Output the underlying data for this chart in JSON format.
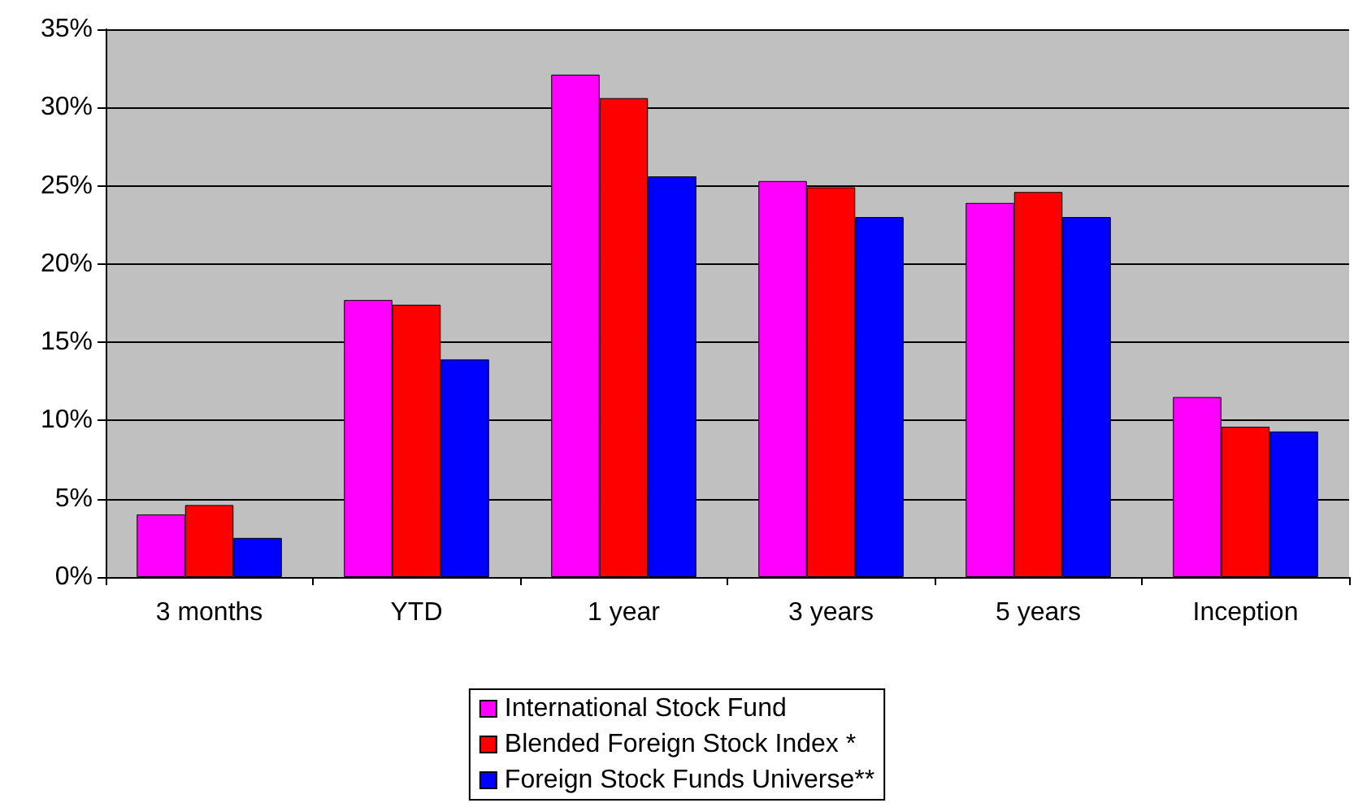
{
  "chart_data": {
    "type": "bar",
    "categories": [
      "3 months",
      "YTD",
      "1 year",
      "3 years",
      "5 years",
      "Inception"
    ],
    "series": [
      {
        "name": "International Stock Fund",
        "color": "#ff00ff",
        "values": [
          4.0,
          17.7,
          32.1,
          25.3,
          23.9,
          11.5
        ]
      },
      {
        "name": "Blended Foreign Stock Index *",
        "color": "#ff0000",
        "values": [
          4.6,
          17.4,
          30.6,
          24.9,
          24.6,
          9.6
        ]
      },
      {
        "name": "Foreign Stock Funds Universe**",
        "color": "#0000ff",
        "values": [
          2.5,
          13.9,
          25.6,
          23.0,
          23.0,
          9.3
        ]
      }
    ],
    "ylim": [
      0,
      35
    ],
    "yticks": [
      {
        "value": 0,
        "label": "0%"
      },
      {
        "value": 5,
        "label": "5%"
      },
      {
        "value": 10,
        "label": "10%"
      },
      {
        "value": 15,
        "label": "15%"
      },
      {
        "value": 20,
        "label": "20%"
      },
      {
        "value": 25,
        "label": "25%"
      },
      {
        "value": 30,
        "label": "30%"
      },
      {
        "value": 35,
        "label": "35%"
      }
    ],
    "grid": "y",
    "legend": "bottom"
  }
}
